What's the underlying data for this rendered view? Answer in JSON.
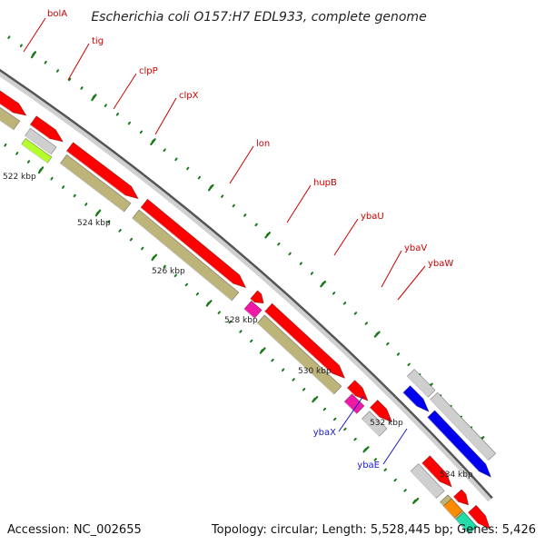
{
  "title": "Escherichia coli O157:H7 EDL933, complete genome",
  "footer": {
    "accession": "Accession: NC_002655",
    "summary": "Topology: circular; Length: 5,528,445 bp; Genes: 5,426"
  },
  "colors": {
    "backbone_dark": "#555555",
    "backbone_light": "#c8c8c8",
    "tick": "#1a7a1a",
    "label_red": "#cc0000",
    "label_blue": "#1a1acc",
    "red": "#ff0000",
    "khaki": "#bdb47a",
    "gray": "#cfcfcf",
    "blue": "#0000ee",
    "magenta": "#ee1aa6",
    "lime": "#b5ff2a",
    "green": "#2bbf2b",
    "orange": "#ff8c00",
    "teal": "#22ddaa"
  },
  "kbp_labels": [
    {
      "text": "522 kbp",
      "kbp": 522
    },
    {
      "text": "524 kbp",
      "kbp": 524
    },
    {
      "text": "526 kbp",
      "kbp": 526
    },
    {
      "text": "528 kbp",
      "kbp": 528
    },
    {
      "text": "530 kbp",
      "kbp": 530
    },
    {
      "text": "532 kbp",
      "kbp": 532
    },
    {
      "text": "534 kbp",
      "kbp": 534
    }
  ],
  "gene_labels": [
    {
      "text": "bolA",
      "color": "red"
    },
    {
      "text": "tig",
      "color": "red"
    },
    {
      "text": "clpP",
      "color": "red"
    },
    {
      "text": "clpX",
      "color": "red"
    },
    {
      "text": "lon",
      "color": "red"
    },
    {
      "text": "hupB",
      "color": "red"
    },
    {
      "text": "ybaU",
      "color": "red"
    },
    {
      "text": "ybaV",
      "color": "red"
    },
    {
      "text": "ybaW",
      "color": "red"
    },
    {
      "text": "ybaX",
      "color": "blue"
    },
    {
      "text": "ybaE",
      "color": "blue"
    }
  ]
}
